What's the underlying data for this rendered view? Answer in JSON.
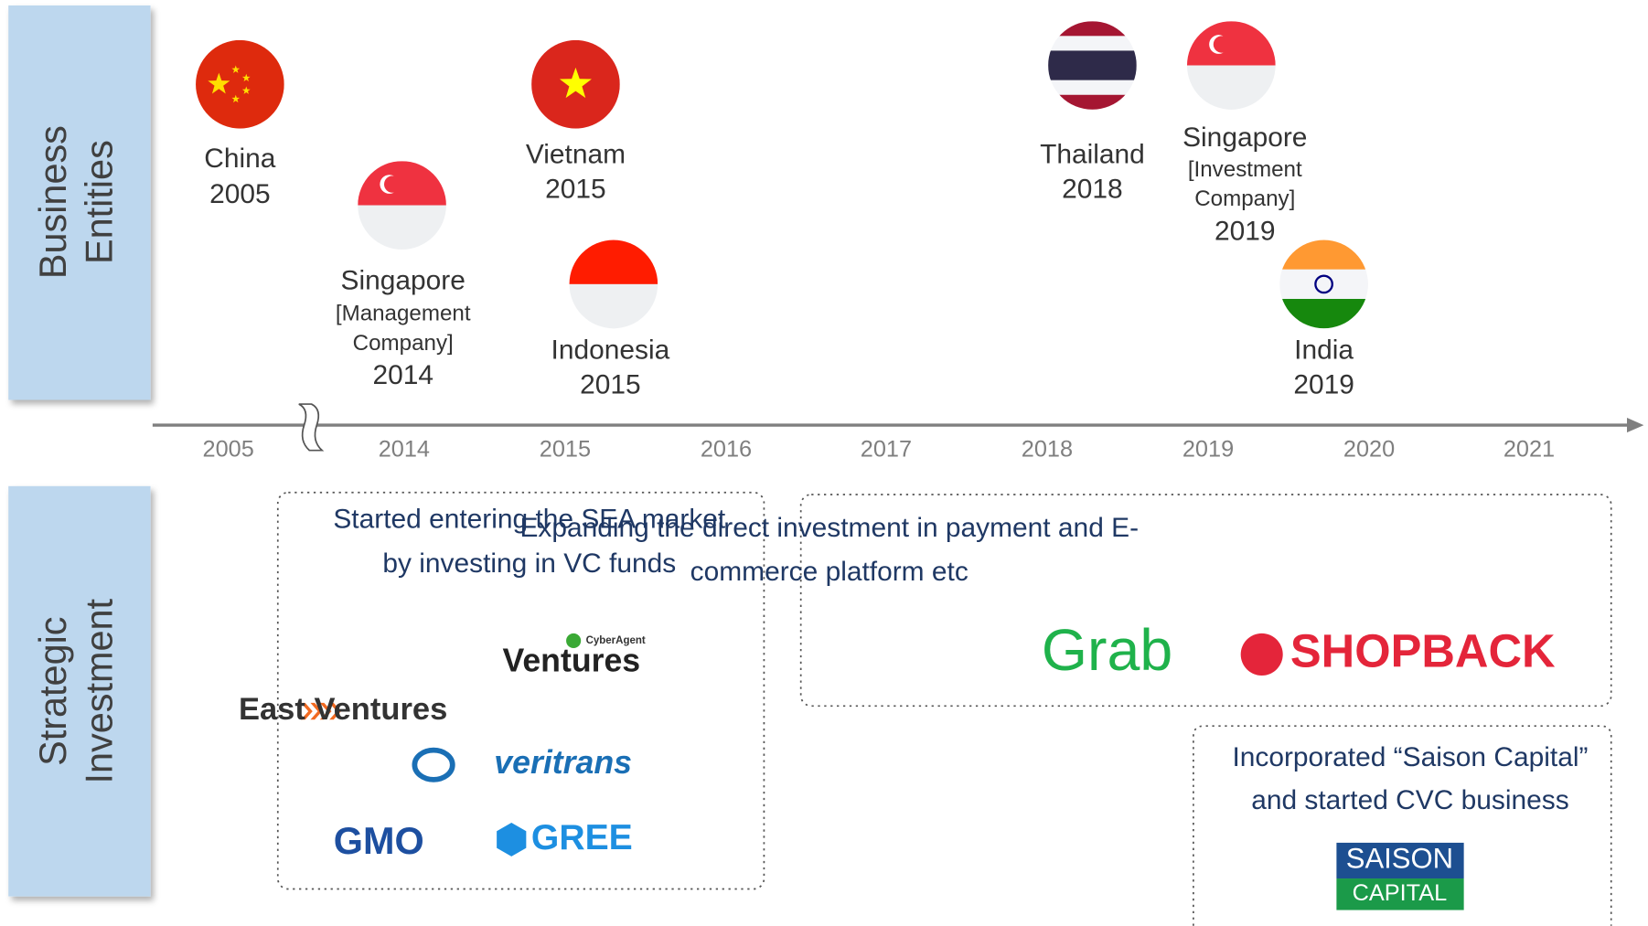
{
  "side_labels": [
    {
      "lines": [
        "Business",
        "Entities"
      ]
    },
    {
      "lines": [
        "Strategic",
        "Investment"
      ]
    }
  ],
  "entities": [
    {
      "name": "China",
      "detail": [],
      "year": "2005"
    },
    {
      "name": "Singapore",
      "detail": [
        "[Management",
        "Company]"
      ],
      "year": "2014"
    },
    {
      "name": "Vietnam",
      "detail": [],
      "year": "2015"
    },
    {
      "name": "Indonesia",
      "detail": [],
      "year": "2015"
    },
    {
      "name": "Thailand",
      "detail": [],
      "year": "2018"
    },
    {
      "name": "Singapore",
      "detail": [
        "[Investment",
        "Company]"
      ],
      "year": "2019"
    },
    {
      "name": "India",
      "detail": [],
      "year": "2019"
    }
  ],
  "axis": {
    "labels": [
      "2005",
      "2014",
      "2015",
      "2016",
      "2017",
      "2018",
      "2019",
      "2020",
      "2021"
    ]
  },
  "investments": [
    {
      "text": [
        "Started entering the SEA market",
        "by investing in  VC funds"
      ],
      "logos": [
        "CyberAgent",
        "Ventures",
        "East Ventures",
        "veritrans",
        "GMO",
        "GREE"
      ]
    },
    {
      "text": [
        "Expanding the direct investment in payment and E-",
        "commerce platform etc"
      ],
      "logos": [
        "Grab",
        "SHOPBACK"
      ]
    },
    {
      "text": [
        "Incorporated “Saison Capital”",
        "and started  CVC business"
      ],
      "logos": [
        "SAISON",
        "CAPITAL"
      ]
    }
  ]
}
